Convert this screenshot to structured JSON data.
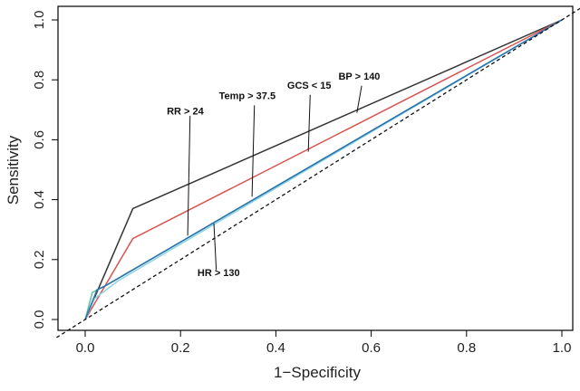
{
  "chart_data": {
    "type": "line",
    "title": "",
    "xlabel": "1−Specificity",
    "ylabel": "Sensitivity",
    "xlim": [
      0,
      1
    ],
    "ylim": [
      0,
      1
    ],
    "x_ticks": [
      "0.0",
      "0.2",
      "0.4",
      "0.6",
      "0.8",
      "1.0"
    ],
    "y_ticks": [
      "0.0",
      "0.2",
      "0.4",
      "0.6",
      "0.8",
      "1.0"
    ],
    "grid": false,
    "legend": "none",
    "series": [
      {
        "color": "#333333",
        "dashed": false,
        "points": [
          [
            0,
            0
          ],
          [
            0.1,
            0.37
          ],
          [
            1,
            1
          ]
        ]
      },
      {
        "color": "#d9534f",
        "dashed": false,
        "points": [
          [
            0,
            0
          ],
          [
            0.1,
            0.27
          ],
          [
            1,
            1
          ]
        ]
      },
      {
        "color": "#8dd6e0",
        "dashed": false,
        "points": [
          [
            0,
            0
          ],
          [
            0.02,
            0.07
          ],
          [
            0.07,
            0.13
          ],
          [
            1,
            1
          ]
        ]
      },
      {
        "color": "#5bc0a5",
        "dashed": false,
        "points": [
          [
            0,
            0
          ],
          [
            0.015,
            0.09
          ],
          [
            0.05,
            0.12
          ],
          [
            1,
            1
          ]
        ]
      },
      {
        "color": "#2c6fb0",
        "dashed": false,
        "points": [
          [
            0,
            0
          ],
          [
            0.025,
            0.1
          ],
          [
            0.04,
            0.11
          ],
          [
            1,
            1
          ]
        ]
      },
      {
        "color": "#111111",
        "dashed": true,
        "points": [
          [
            -0.06,
            -0.06
          ],
          [
            1.06,
            1.06
          ]
        ]
      }
    ],
    "annotations": [
      {
        "text": "RR > 24",
        "label_at": [
          0.21,
          0.685
        ],
        "line_from": [
          0.22,
          0.68
        ],
        "line_to": [
          0.215,
          0.28
        ]
      },
      {
        "text": "Temp > 37.5",
        "label_at": [
          0.34,
          0.735
        ],
        "line_from": [
          0.355,
          0.715
        ],
        "line_to": [
          0.35,
          0.41
        ]
      },
      {
        "text": "GCS < 15",
        "label_at": [
          0.47,
          0.77
        ],
        "line_from": [
          0.472,
          0.75
        ],
        "line_to": [
          0.468,
          0.56
        ]
      },
      {
        "text": "BP > 140",
        "label_at": [
          0.575,
          0.8
        ],
        "line_from": [
          0.58,
          0.78
        ],
        "line_to": [
          0.57,
          0.69
        ]
      },
      {
        "text": "HR > 130",
        "label_at": [
          0.28,
          0.145
        ],
        "line_from": [
          0.275,
          0.165
        ],
        "line_to": [
          0.27,
          0.32
        ]
      }
    ]
  }
}
